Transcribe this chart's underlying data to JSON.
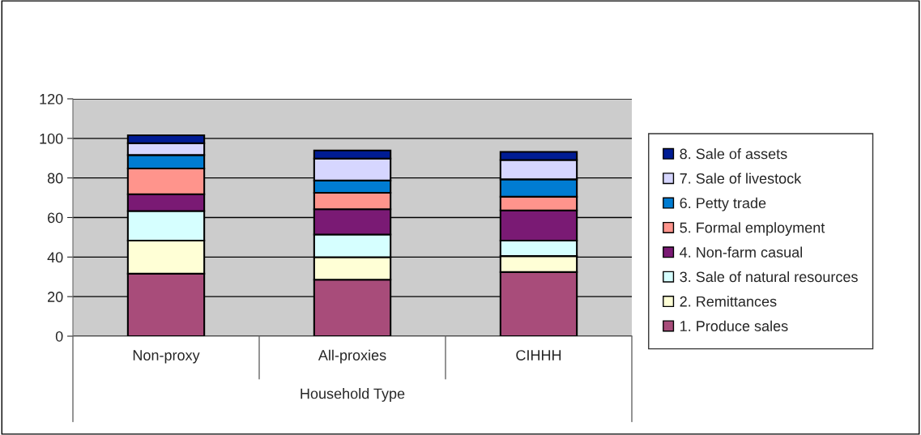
{
  "chart_data": {
    "type": "bar",
    "stacked": true,
    "xlabel": "Household Type",
    "categories": [
      "Non-proxy",
      "All-proxies",
      "CIHHH"
    ],
    "series": [
      {
        "name": "1. Produce sales",
        "color": "#a84c7a",
        "values": [
          31.6,
          28.6,
          32.4
        ]
      },
      {
        "name": "2. Remittances",
        "color": "#ffffd6",
        "values": [
          16.7,
          11.3,
          8.1
        ]
      },
      {
        "name": "3. Sale of natural resources",
        "color": "#d6ffff",
        "values": [
          15.0,
          11.5,
          7.8
        ]
      },
      {
        "name": "4. Non-farm casual",
        "color": "#7a1a74",
        "values": [
          8.5,
          12.8,
          15.3
        ]
      },
      {
        "name": "5. Formal employment",
        "color": "#ff948c",
        "values": [
          13.0,
          8.3,
          6.9
        ]
      },
      {
        "name": "6. Petty trade",
        "color": "#007cd2",
        "values": [
          6.8,
          6.2,
          8.8
        ]
      },
      {
        "name": "7. Sale of livestock",
        "color": "#d6d6ff",
        "values": [
          6.0,
          11.1,
          9.8
        ]
      },
      {
        "name": "8. Sale of assets",
        "color": "#001c94",
        "values": [
          4.0,
          4.1,
          4.1
        ]
      }
    ],
    "ylim": [
      0,
      120
    ],
    "yticks": [
      0,
      20,
      40,
      60,
      80,
      100,
      120
    ],
    "grid": "y",
    "legend": "right"
  }
}
